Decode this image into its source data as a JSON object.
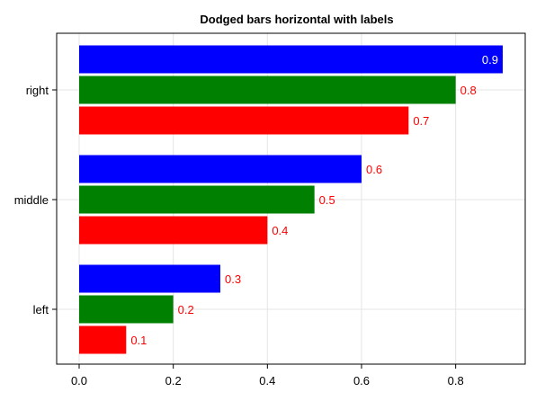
{
  "chart_data": {
    "type": "bar",
    "orientation": "horizontal",
    "title": "Dodged bars horizontal with labels",
    "xlabel": "",
    "ylabel": "",
    "categories": [
      "left",
      "middle",
      "right"
    ],
    "series": [
      {
        "values": [
          0.1,
          0.4,
          0.7
        ],
        "labels": [
          "0.1",
          "0.4",
          "0.7"
        ],
        "color": "#ff0000"
      },
      {
        "values": [
          0.2,
          0.5,
          0.8
        ],
        "labels": [
          "0.2",
          "0.5",
          "0.8"
        ],
        "color": "#008000"
      },
      {
        "values": [
          0.3,
          0.6,
          0.9
        ],
        "labels": [
          "0.3",
          "0.6",
          "0.9"
        ],
        "color": "#0000ff"
      }
    ],
    "xlim": [
      -0.05,
      0.95
    ],
    "xticks": [
      "0.0",
      "0.2",
      "0.4",
      "0.6",
      "0.8"
    ],
    "xtick_values": [
      0,
      0.2,
      0.4,
      0.6,
      0.8
    ],
    "label_color": "#ff0000",
    "inside_label_color": "#ffffff",
    "grid": true,
    "legend": "none"
  }
}
